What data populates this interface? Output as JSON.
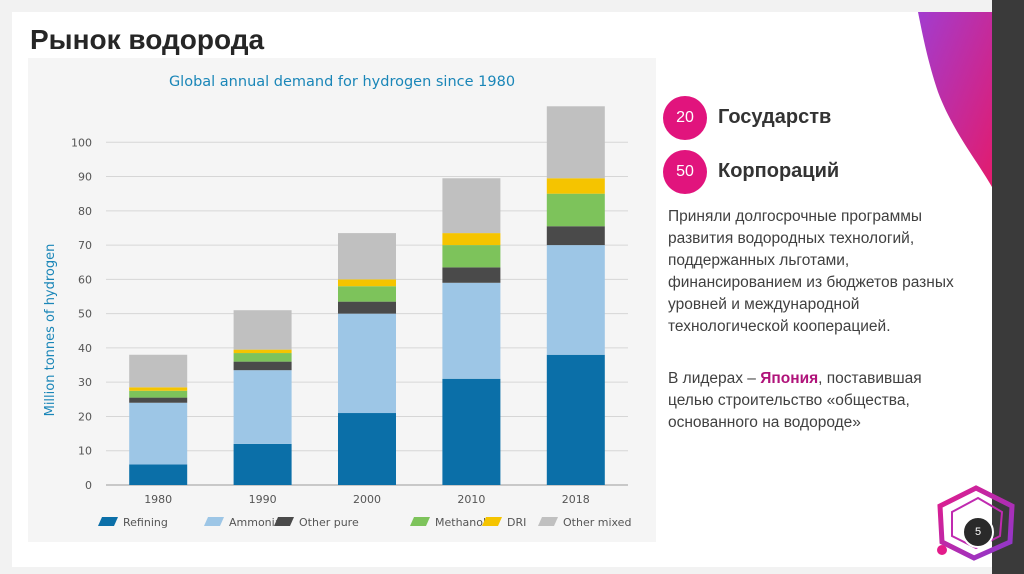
{
  "slide": {
    "title": "Рынок водорода",
    "page_number": "5",
    "stats": [
      {
        "number": "20",
        "label": "Государств"
      },
      {
        "number": "50",
        "label": "Корпораций"
      }
    ],
    "paragraph": "Приняли долгосрочные программы развития водородных технологий, поддержанных льготами, финансированием из бюджетов разных уровней и международной технологической кооперацией.",
    "leaders_prefix": "В лидерах – ",
    "leaders_highlight": "Япония",
    "leaders_suffix": ", поставившая целью строительство «общества, основанного на водороде»"
  },
  "colors": {
    "accent": "#e1147d",
    "title_chart": "#1a86b8",
    "axis_label": "#1a86b8"
  },
  "chart_data": {
    "type": "bar",
    "stacked": true,
    "title": "Global annual demand for hydrogen since 1980",
    "xlabel": "",
    "ylabel": "Million tonnes of hydrogen",
    "ylim": [
      0,
      110
    ],
    "yticks": [
      0,
      10,
      20,
      30,
      40,
      50,
      60,
      70,
      80,
      90,
      100
    ],
    "categories": [
      "1980",
      "1990",
      "2000",
      "2010",
      "2018"
    ],
    "grid": "horizontal",
    "legend_position": "bottom",
    "series": [
      {
        "name": "Refining",
        "color": "#0b6fa8",
        "values": [
          6,
          12,
          21,
          31,
          38
        ]
      },
      {
        "name": "Ammonia",
        "color": "#9dc6e6",
        "values": [
          18,
          21.5,
          29,
          28,
          32
        ]
      },
      {
        "name": "Other pure",
        "color": "#4a4a4a",
        "values": [
          1.5,
          2.5,
          3.5,
          4.5,
          5.5
        ]
      },
      {
        "name": "Methanol",
        "color": "#7dc35b",
        "values": [
          2,
          2.5,
          4.5,
          6.5,
          9.5
        ]
      },
      {
        "name": "DRI",
        "color": "#f5c400",
        "values": [
          1,
          1,
          2,
          3.5,
          4.5
        ]
      },
      {
        "name": "Other mixed",
        "color": "#c0c0c0",
        "values": [
          9.5,
          11.5,
          13.5,
          16,
          21
        ]
      }
    ]
  }
}
